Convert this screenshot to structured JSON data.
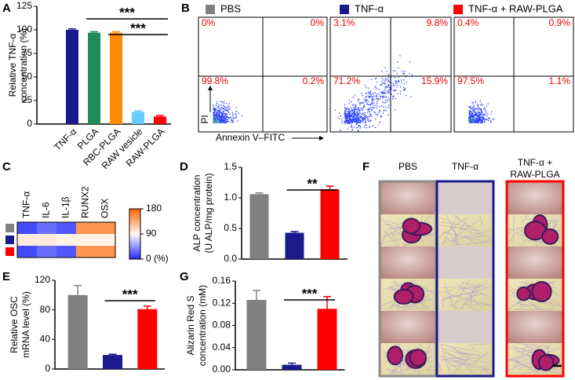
{
  "chart_data": [
    {
      "type": "bar",
      "panel": "A",
      "ylabel": [
        "Relative TNF-α",
        "concentration (%)"
      ],
      "categories": [
        "TNF-α",
        "PLGA",
        "RBC-PLGA",
        "RAW vesicle",
        "RAW-PLGA"
      ],
      "values": [
        100,
        97,
        97,
        13,
        8
      ],
      "errors": [
        1,
        1,
        1,
        1,
        1
      ],
      "colors": [
        "#1a1a8c",
        "#1f8a5a",
        "#ff8c00",
        "#66ccff",
        "#ff0000"
      ],
      "ylim": [
        0,
        125
      ],
      "yticks": [
        0,
        25,
        50,
        75,
        100,
        125
      ],
      "annotations": [
        "***",
        "***"
      ]
    },
    {
      "type": "quadrant",
      "panel": "B",
      "xlabel": "Annexin V–FITC",
      "ylabel": "PI",
      "series": [
        {
          "name": "PBS",
          "color": "#808080",
          "values": [
            0,
            0,
            99.8,
            0.2
          ],
          "value_labels": [
            "0%",
            "0%",
            "99.8%",
            "0.2%"
          ]
        },
        {
          "name": "TNF-α",
          "color": "#1a1a8c",
          "values": [
            3.1,
            9.8,
            71.2,
            15.9
          ],
          "value_labels": [
            "3.1%",
            "9.8%",
            "71.2%",
            "15.9%"
          ]
        },
        {
          "name": "TNF-α + RAW-PLGA",
          "color": "#ff0000",
          "values": [
            0.4,
            0.9,
            97.5,
            1.1
          ],
          "value_labels": [
            "0.4%",
            "0.9%",
            "97.5%",
            "1.1%"
          ]
        }
      ]
    },
    {
      "type": "heatmap",
      "panel": "C",
      "columns": [
        "TNF-α",
        "IL-6",
        "IL-1β",
        "RUNX2",
        "OSX"
      ],
      "row_colors": [
        "#808080",
        "#1a1a8c",
        "#ff0000"
      ],
      "values": [
        [
          15,
          30,
          20,
          150,
          150
        ],
        [
          100,
          100,
          95,
          95,
          95
        ],
        [
          15,
          30,
          20,
          150,
          150
        ]
      ],
      "zlim": [
        0,
        180
      ],
      "zticks": [
        {
          "value": 0,
          "label": "0 (%)"
        },
        90,
        180
      ]
    },
    {
      "type": "bar",
      "panel": "D",
      "ylabel": [
        "ALP concentration",
        "(U ALP/mg protein)"
      ],
      "values": [
        1.06,
        0.43,
        1.14
      ],
      "errors": [
        0.02,
        0.02,
        0.05
      ],
      "colors": [
        "#808080",
        "#1a1a8c",
        "#ff0000"
      ],
      "ylim": [
        0,
        1.5
      ],
      "yticks": [
        {
          "value": 0,
          "label": "0.0"
        },
        {
          "value": 0.5,
          "label": "0.5"
        },
        {
          "value": 1,
          "label": "1.0"
        },
        {
          "value": 1.5,
          "label": "1.5"
        }
      ],
      "annotations": [
        "**"
      ]
    },
    {
      "type": "bar",
      "panel": "E",
      "ylabel": [
        "Relative OSC",
        "mRNA level (%)"
      ],
      "values": [
        100,
        19,
        81
      ],
      "errors": [
        13,
        1,
        4
      ],
      "colors": [
        "#808080",
        "#1a1a8c",
        "#ff0000"
      ],
      "ylim": [
        0,
        120
      ],
      "yticks": [
        0,
        40,
        80,
        120
      ],
      "annotations": [
        "***"
      ]
    },
    {
      "type": "bar",
      "panel": "G",
      "ylabel": [
        "Alizarin Red S",
        "concentration (mM)"
      ],
      "values": [
        0.126,
        0.009,
        0.11
      ],
      "errors": [
        0.017,
        0.003,
        0.022
      ],
      "colors": [
        "#808080",
        "#1a1a8c",
        "#ff0000"
      ],
      "ylim": [
        0,
        0.16
      ],
      "yticks": [
        {
          "value": 0,
          "label": "0.00"
        },
        {
          "value": 0.04,
          "label": "0.04"
        },
        {
          "value": 0.08,
          "label": "0.08"
        },
        {
          "value": 0.12,
          "label": "0.12"
        },
        {
          "value": 0.16,
          "label": "0.16"
        }
      ],
      "annotations": [
        "***"
      ]
    }
  ],
  "figure_f": {
    "panel": "F",
    "columns": [
      [
        "PBS"
      ],
      [
        "TNF-α"
      ],
      [
        "TNF-α +",
        "RAW-PLGA"
      ]
    ]
  }
}
